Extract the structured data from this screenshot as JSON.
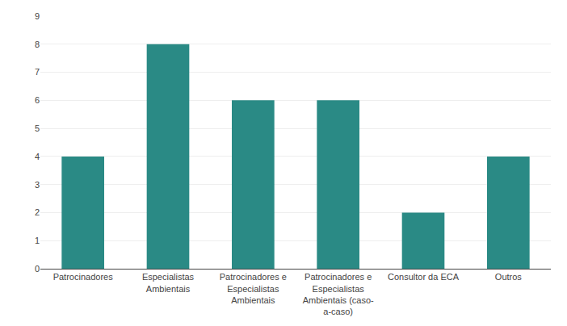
{
  "chart_data": {
    "type": "bar",
    "categories": [
      "Patrocinadores",
      "Especialistas\nAmbientais",
      "Patrocinadores e\nEspecialistas\nAmbientais",
      "Patrocinadores e\nEspecialistas\nAmbientais (caso-\na-caso)",
      "Consultor da ECA",
      "Outros"
    ],
    "values": [
      4,
      8,
      6,
      6,
      2,
      4
    ],
    "color": "#2a8a85",
    "ylim": [
      0,
      9
    ],
    "yticks": [
      0,
      1,
      2,
      3,
      4,
      5,
      6,
      7,
      8,
      9
    ],
    "grid": true
  }
}
